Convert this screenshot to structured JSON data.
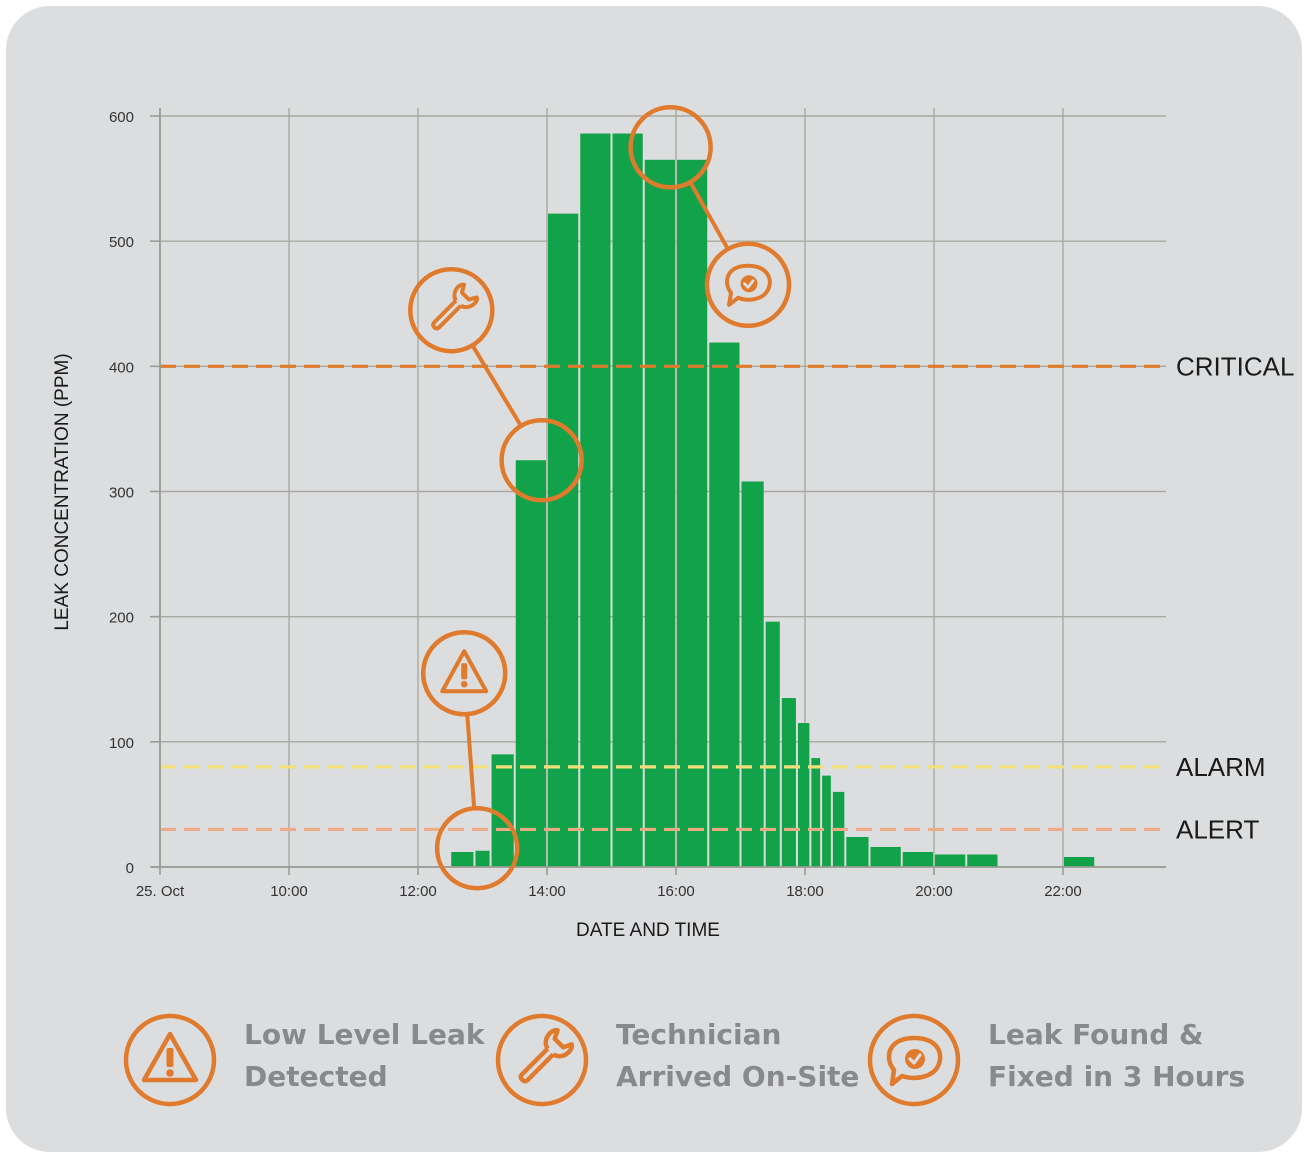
{
  "chart_data": {
    "type": "bar",
    "xlabel": "DATE AND TIME",
    "ylabel": "LEAK CONCENTRATION (PPM)",
    "ylim": [
      0,
      600
    ],
    "x_tick_labels": [
      "25. Oct",
      "10:00",
      "12:00",
      "14:00",
      "16:00",
      "18:00",
      "20:00",
      "22:00"
    ],
    "y_tick_labels": [
      "0",
      "100",
      "200",
      "300",
      "400",
      "500",
      "600"
    ],
    "grid": true,
    "bar_color": "#12a34a",
    "series": [
      {
        "x": [
          "12:45",
          "13:00",
          "13:15",
          "13:45",
          "14:15",
          "14:45",
          "15:15",
          "15:45",
          "16:15",
          "16:45",
          "17:15",
          "17:30",
          "17:45",
          "18:00",
          "18:10",
          "18:20",
          "18:30",
          "18:45",
          "19:15",
          "19:45",
          "20:15",
          "20:45",
          "22:15"
        ],
        "values": [
          12,
          13,
          90,
          325,
          522,
          586,
          586,
          565,
          565,
          419,
          308,
          196,
          135,
          115,
          87,
          73,
          60,
          24,
          16,
          12,
          10,
          10,
          8
        ]
      }
    ],
    "thresholds": [
      {
        "label": "CRITICAL",
        "value": 400,
        "color": "#e07a2c"
      },
      {
        "label": "ALARM",
        "value": 80,
        "color": "#f2e07a"
      },
      {
        "label": "ALERT",
        "value": 30,
        "color": "#edab85"
      }
    ],
    "annotations": [
      {
        "icon": "warning-icon",
        "x": "12:55",
        "y": 15
      },
      {
        "icon": "wrench-icon",
        "x": "13:55",
        "y": 325
      },
      {
        "icon": "chat-check-icon",
        "x": "15:55",
        "y": 575
      }
    ]
  },
  "accent_color": "#e07a2c",
  "legend": [
    {
      "icon": "warning-icon",
      "line1": "Low Level Leak",
      "line2": "Detected"
    },
    {
      "icon": "wrench-icon",
      "line1": "Technician",
      "line2": "Arrived On-Site"
    },
    {
      "icon": "chat-check-icon",
      "line1": "Leak Found &",
      "line2": "Fixed in 3 Hours"
    }
  ]
}
